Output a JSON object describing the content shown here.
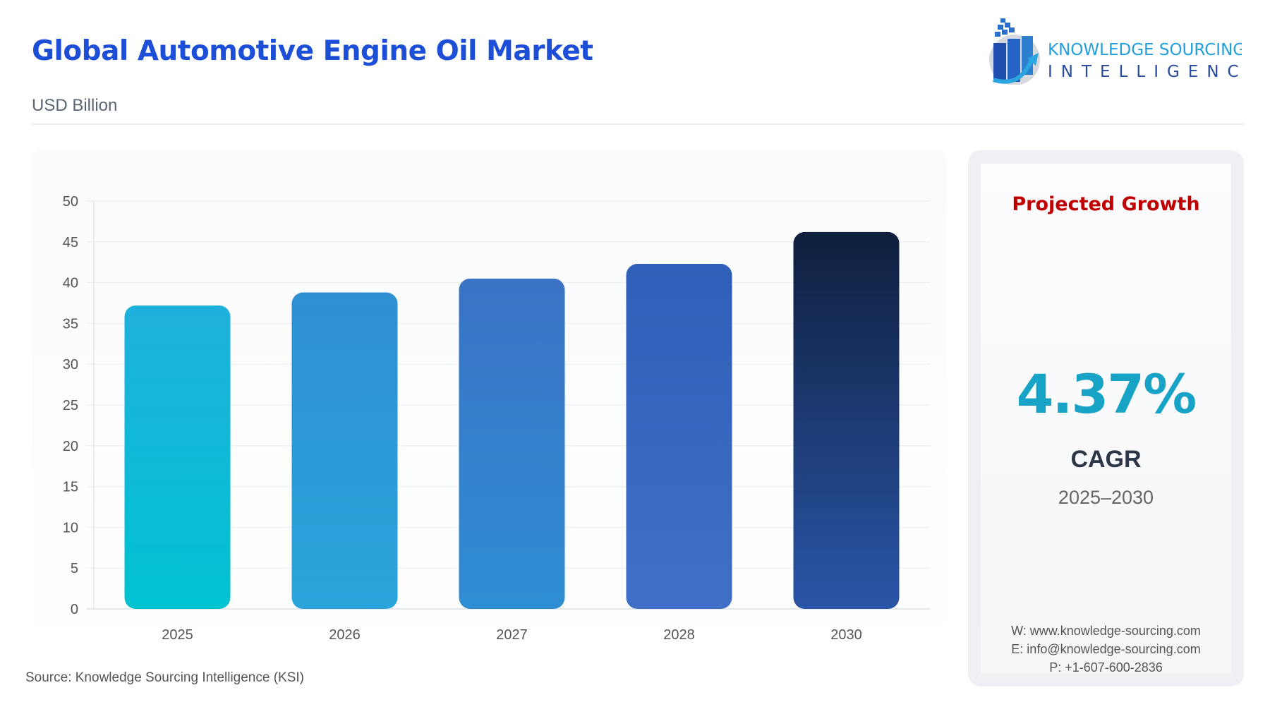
{
  "header": {
    "title": "Global Automotive Engine Oil Market",
    "unit": "USD Billion"
  },
  "logo": {
    "line1": "KNOWLEDGE SOURCING",
    "line2": "INTELLIGENCE"
  },
  "source": "Source: Knowledge Sourcing Intelligence (KSI)",
  "panel": {
    "heading": "Projected Growth",
    "cagr_value": "4.37%",
    "cagr_label": "CAGR",
    "period": "2025–2030",
    "website": "W: www.knowledge-sourcing.com",
    "email": "E: info@knowledge-sourcing.com",
    "phone": "P: +1-607-600-2836"
  },
  "chart_data": {
    "type": "bar",
    "categories": [
      "2025",
      "2026",
      "2027",
      "2028",
      "2030"
    ],
    "values": [
      37.2,
      38.8,
      40.5,
      42.3,
      46.2
    ],
    "ylim": [
      0,
      50
    ],
    "yticks": [
      0,
      5,
      10,
      15,
      20,
      25,
      30,
      35,
      40,
      45,
      50
    ],
    "grid": true,
    "colors": [
      [
        "#1fb0dc",
        "#00c2d1"
      ],
      [
        "#2f8fd2",
        "#2aa5dc"
      ],
      [
        "#3a72c4",
        "#2f8ed3"
      ],
      [
        "#2f5fb8",
        "#3f6fc6"
      ],
      [
        "#0f1f3d",
        "#2a55a8"
      ]
    ]
  }
}
